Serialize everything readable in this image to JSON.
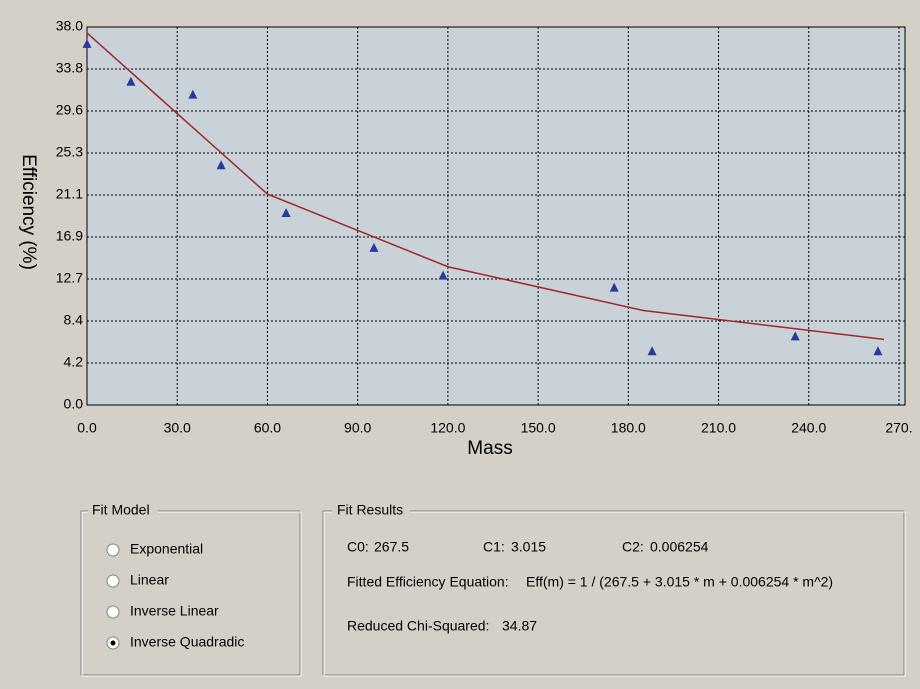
{
  "chart_data": {
    "type": "scatter",
    "y_label": "Efficiency (%)",
    "x_label": "Mass",
    "xlim": [
      0,
      272
    ],
    "ylim": [
      0,
      38
    ],
    "xticks": [
      {
        "value": 0,
        "label": "0.0"
      },
      {
        "value": 30,
        "label": "30.0"
      },
      {
        "value": 60,
        "label": "60.0"
      },
      {
        "value": 90,
        "label": "90.0"
      },
      {
        "value": 120,
        "label": "120.0"
      },
      {
        "value": 150,
        "label": "150.0"
      },
      {
        "value": 180,
        "label": "180.0"
      },
      {
        "value": 210,
        "label": "210.0"
      },
      {
        "value": 240,
        "label": "240.0"
      },
      {
        "value": 270,
        "label": "270."
      }
    ],
    "yticks": [
      {
        "value": 0,
        "label": "0.0"
      },
      {
        "value": 4.22,
        "label": "4.2"
      },
      {
        "value": 8.44,
        "label": "8.4"
      },
      {
        "value": 12.67,
        "label": "12.7"
      },
      {
        "value": 16.89,
        "label": "16.9"
      },
      {
        "value": 21.11,
        "label": "21.1"
      },
      {
        "value": 25.33,
        "label": "25.3"
      },
      {
        "value": 29.56,
        "label": "29.6"
      },
      {
        "value": 33.78,
        "label": "33.8"
      },
      {
        "value": 38,
        "label": "38.0"
      }
    ],
    "grid": true,
    "series": [
      {
        "marker": "triangle",
        "color": "#2a3a9a",
        "x": [
          0,
          14.6,
          35.2,
          44.6,
          66.2,
          95.4,
          118.4,
          175.3,
          187.9,
          235.5,
          263
        ],
        "values": [
          36.3,
          32.5,
          31.2,
          24.1,
          19.3,
          15.8,
          13.0,
          11.8,
          5.4,
          6.9,
          5.4
        ]
      },
      {
        "marker": "line",
        "color": "#a02828",
        "x": [
          0,
          60,
          120,
          185,
          265
        ],
        "values": [
          37.4,
          21.2,
          13.9,
          9.5,
          6.6
        ]
      }
    ]
  },
  "fit_model": {
    "title": "Fit Model",
    "options": [
      "Exponential",
      "Linear",
      "Inverse Linear",
      "Inverse Quadradic"
    ],
    "selected": 3
  },
  "fit_results": {
    "title": "Fit Results",
    "c0_label": "C0:",
    "c0": 267.5,
    "c1_label": "C1:",
    "c1": 3.015,
    "c2_label": "C2:",
    "c2": 0.006254,
    "equation_label": "Fitted Efficiency Equation:",
    "equation": "Eff(m) = 1 / (267.5 + 3.015 * m + 0.006254 * m^2)",
    "chi_label": "Reduced Chi-Squared:",
    "chi": 34.87
  }
}
